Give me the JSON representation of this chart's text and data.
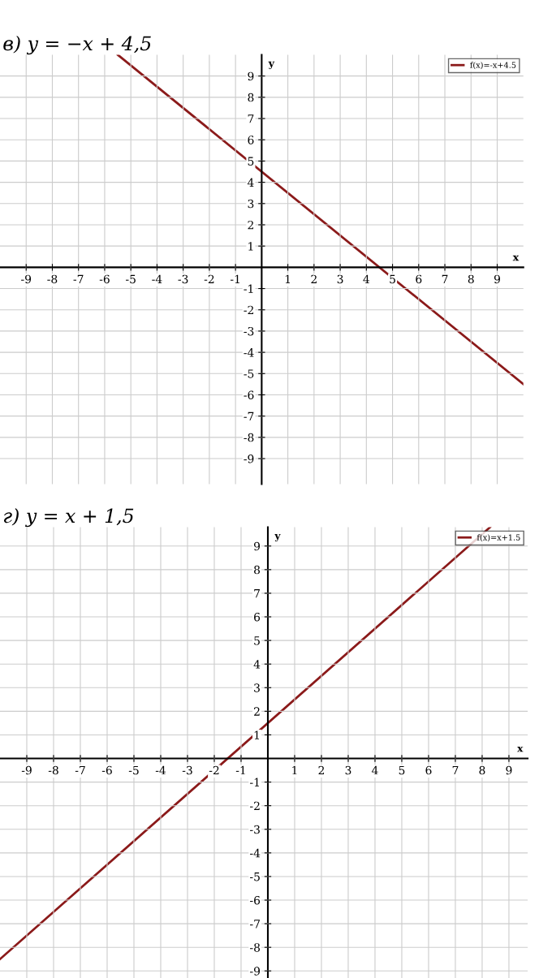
{
  "chart_data": [
    {
      "type": "line",
      "title": "в) y = −x + 4,5",
      "xlabel": "x",
      "ylabel": "y",
      "x": [
        -5.5,
        10.0
      ],
      "series": [
        {
          "name": "f(x)=-x+4.5",
          "color": "#8b1a1a",
          "values": [
            10.0,
            -5.5
          ]
        }
      ],
      "xlim": [
        -10.0,
        10.0
      ],
      "ylim": [
        -10.2,
        10.0
      ],
      "xticks": [
        -9,
        -8,
        -7,
        -6,
        -5,
        -4,
        -3,
        -2,
        -1,
        1,
        2,
        3,
        4,
        5,
        6,
        7,
        8,
        9
      ],
      "yticks": [
        -9,
        -8,
        -7,
        -6,
        -5,
        -4,
        -3,
        -2,
        -1,
        1,
        2,
        3,
        4,
        5,
        6,
        7,
        8,
        9
      ],
      "grid": true,
      "legend": "top right",
      "marker": "none",
      "line_style": "solid"
    },
    {
      "type": "line",
      "title": "г) y = x + 1,5",
      "xlabel": "x",
      "ylabel": "y",
      "x": [
        -10.0,
        8.3
      ],
      "series": [
        {
          "name": "f(x)=x+1.5",
          "color": "#8b1a1a",
          "values": [
            -8.5,
            9.8
          ]
        }
      ],
      "xlim": [
        -10.0,
        9.7
      ],
      "ylim": [
        -9.3,
        9.8
      ],
      "xticks": [
        -9,
        -8,
        -7,
        -6,
        -5,
        -4,
        -3,
        -2,
        -1,
        1,
        2,
        3,
        4,
        5,
        6,
        7,
        8,
        9
      ],
      "yticks": [
        -9,
        -8,
        -7,
        -6,
        -5,
        -4,
        -3,
        -2,
        -1,
        1,
        2,
        3,
        4,
        5,
        6,
        7,
        8,
        9
      ],
      "grid": true,
      "legend": "top right",
      "marker": "none",
      "line_style": "solid"
    }
  ]
}
